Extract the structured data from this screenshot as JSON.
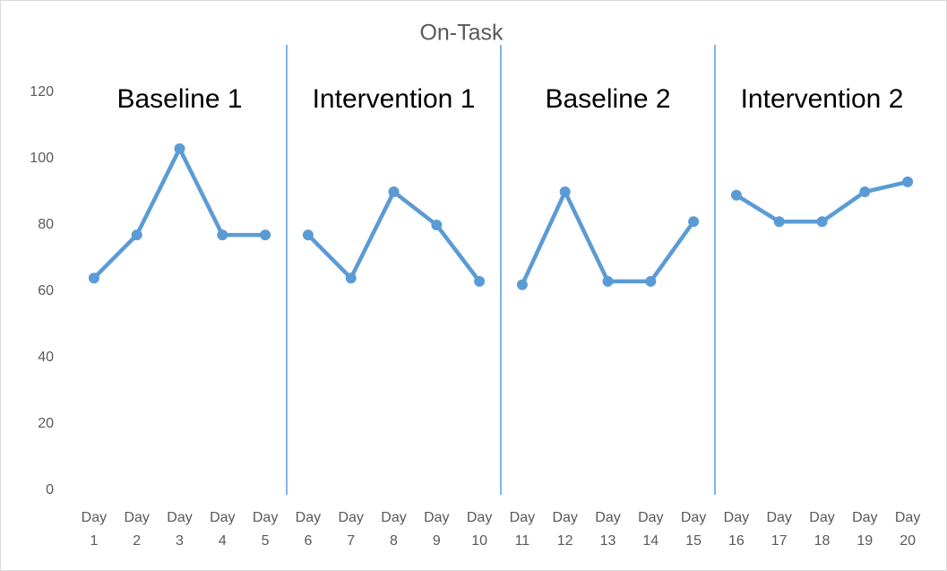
{
  "chart_data": {
    "type": "line",
    "title": "On-Task",
    "categories": [
      "Day 1",
      "Day 2",
      "Day 3",
      "Day 4",
      "Day 5",
      "Day 6",
      "Day 7",
      "Day 8",
      "Day 9",
      "Day 10",
      "Day 11",
      "Day 12",
      "Day 13",
      "Day 14",
      "Day 15",
      "Day 16",
      "Day 17",
      "Day 18",
      "Day 19",
      "Day 20"
    ],
    "series": [
      {
        "name": "Baseline 1",
        "color": "#5b9bd5",
        "values": [
          64,
          77,
          103,
          77,
          77,
          null,
          null,
          null,
          null,
          null,
          null,
          null,
          null,
          null,
          null,
          null,
          null,
          null,
          null,
          null
        ]
      },
      {
        "name": "Intervention 1",
        "color": "#5b9bd5",
        "values": [
          null,
          null,
          null,
          null,
          null,
          77,
          64,
          90,
          80,
          63,
          null,
          null,
          null,
          null,
          null,
          null,
          null,
          null,
          null,
          null
        ]
      },
      {
        "name": "Baseline 2",
        "color": "#5b9bd5",
        "values": [
          null,
          null,
          null,
          null,
          null,
          null,
          null,
          null,
          null,
          null,
          62,
          90,
          63,
          63,
          81,
          null,
          null,
          null,
          null,
          null
        ]
      },
      {
        "name": "Intervention 2",
        "color": "#5b9bd5",
        "values": [
          null,
          null,
          null,
          null,
          null,
          null,
          null,
          null,
          null,
          null,
          null,
          null,
          null,
          null,
          null,
          89,
          81,
          81,
          90,
          93
        ]
      }
    ],
    "ylim": [
      0,
      120
    ],
    "yticks": [
      0,
      20,
      40,
      60,
      80,
      100,
      120
    ],
    "grid": false
  }
}
